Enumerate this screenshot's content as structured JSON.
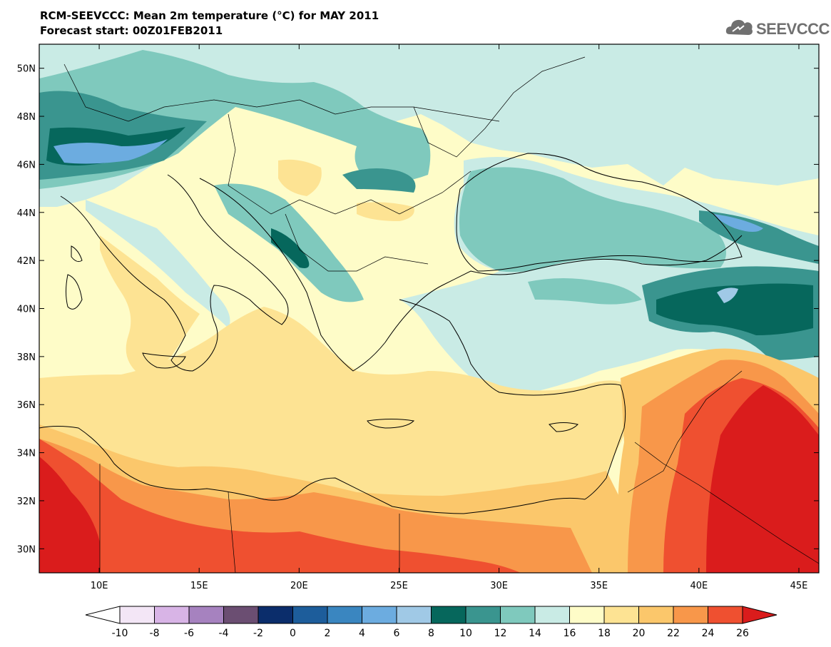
{
  "title_line1": "RCM-SEEVCCC: Mean 2m temperature (°C) for MAY 2011",
  "title_line2": "Forecast start: 00Z01FEB2011",
  "logo": {
    "text": "SEEVCCC",
    "icon": "cloud-icon",
    "color": "#707070"
  },
  "map": {
    "lon_range": [
      7,
      46
    ],
    "lat_range": [
      29,
      51
    ],
    "lon_ticks": [
      {
        "v": 10,
        "label": "10E"
      },
      {
        "v": 15,
        "label": "15E"
      },
      {
        "v": 20,
        "label": "20E"
      },
      {
        "v": 25,
        "label": "25E"
      },
      {
        "v": 30,
        "label": "30E"
      },
      {
        "v": 35,
        "label": "35E"
      },
      {
        "v": 40,
        "label": "40E"
      },
      {
        "v": 45,
        "label": "45E"
      }
    ],
    "lat_ticks": [
      {
        "v": 50,
        "label": "50N"
      },
      {
        "v": 48,
        "label": "48N"
      },
      {
        "v": 46,
        "label": "46N"
      },
      {
        "v": 44,
        "label": "44N"
      },
      {
        "v": 42,
        "label": "42N"
      },
      {
        "v": 40,
        "label": "40N"
      },
      {
        "v": 38,
        "label": "38N"
      },
      {
        "v": 36,
        "label": "36N"
      },
      {
        "v": 34,
        "label": "34N"
      },
      {
        "v": 32,
        "label": "32N"
      },
      {
        "v": 30,
        "label": "30N"
      }
    ]
  },
  "colorbar": {
    "labels": [
      "-10",
      "-8",
      "-6",
      "-4",
      "-2",
      "0",
      "2",
      "4",
      "6",
      "8",
      "10",
      "12",
      "14",
      "16",
      "18",
      "20",
      "22",
      "24",
      "26"
    ],
    "colors": [
      "#f3e6f6",
      "#d8b4e6",
      "#a682bf",
      "#6b4e72",
      "#0b2d6b",
      "#1d5d9b",
      "#3a86c0",
      "#6cace0",
      "#a0c9e6",
      "#06675c",
      "#3a958f",
      "#7fc9bd",
      "#c9ebe5",
      "#fefcc8",
      "#fde393",
      "#fbc76b",
      "#f8974a",
      "#ef5030"
    ],
    "under_color": "#ffffff",
    "over_color": "#da1c1c"
  }
}
